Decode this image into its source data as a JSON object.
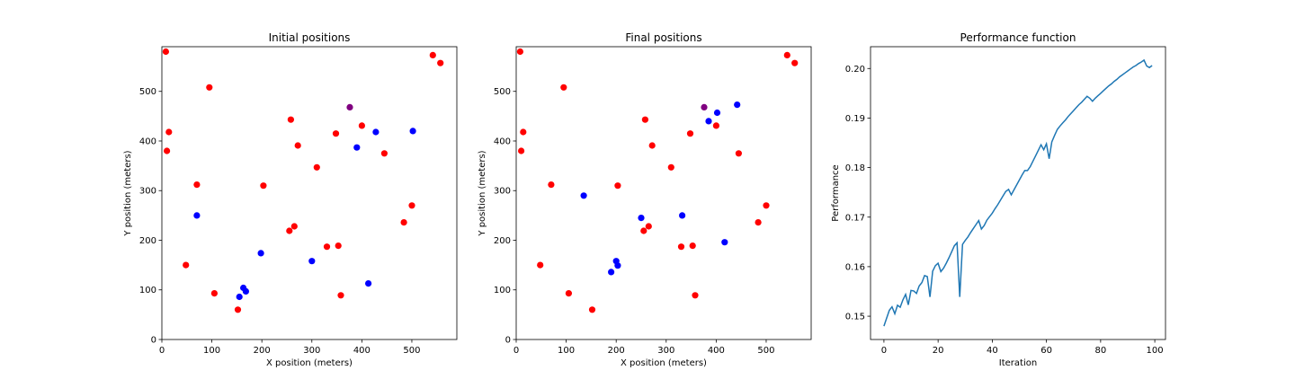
{
  "chart_data": [
    {
      "type": "scatter",
      "title": "Initial positions",
      "xlabel": "X position (meters)",
      "ylabel": "Y position (meters)",
      "xlim": [
        0,
        590
      ],
      "ylim": [
        0,
        590
      ],
      "xticks": [
        0,
        100,
        200,
        300,
        400,
        500
      ],
      "yticks": [
        0,
        100,
        200,
        300,
        400,
        500
      ],
      "grid": false,
      "series": [
        {
          "color": "#ff0000",
          "points": [
            [
              8,
              580
            ],
            [
              14,
              418
            ],
            [
              10,
              380
            ],
            [
              95,
              508
            ],
            [
              70,
              312
            ],
            [
              48,
              150
            ],
            [
              105,
              93
            ],
            [
              152,
              60
            ],
            [
              203,
              310
            ],
            [
              258,
              443
            ],
            [
              272,
              391
            ],
            [
              310,
              347
            ],
            [
              348,
              415
            ],
            [
              400,
              431
            ],
            [
              445,
              375
            ],
            [
              265,
              228
            ],
            [
              255,
              219
            ],
            [
              330,
              187
            ],
            [
              353,
              189
            ],
            [
              358,
              89
            ],
            [
              484,
              236
            ],
            [
              500,
              270
            ],
            [
              542,
              573
            ],
            [
              557,
              557
            ]
          ]
        },
        {
          "color": "#0000ff",
          "points": [
            [
              70,
              250
            ],
            [
              155,
              86
            ],
            [
              163,
              104
            ],
            [
              168,
              97
            ],
            [
              198,
              174
            ],
            [
              300,
              158
            ],
            [
              390,
              387
            ],
            [
              428,
              418
            ],
            [
              502,
              420
            ],
            [
              413,
              113
            ]
          ]
        },
        {
          "color": "#800080",
          "points": [
            [
              376,
              468
            ]
          ]
        }
      ]
    },
    {
      "type": "scatter",
      "title": "Final positions",
      "xlabel": "X position (meters)",
      "ylabel": "Y position (meters)",
      "xlim": [
        0,
        590
      ],
      "ylim": [
        0,
        590
      ],
      "xticks": [
        0,
        100,
        200,
        300,
        400,
        500
      ],
      "yticks": [
        0,
        100,
        200,
        300,
        400,
        500
      ],
      "grid": false,
      "series": [
        {
          "color": "#ff0000",
          "points": [
            [
              8,
              580
            ],
            [
              14,
              418
            ],
            [
              10,
              380
            ],
            [
              95,
              508
            ],
            [
              70,
              312
            ],
            [
              48,
              150
            ],
            [
              105,
              93
            ],
            [
              152,
              60
            ],
            [
              203,
              310
            ],
            [
              258,
              443
            ],
            [
              272,
              391
            ],
            [
              310,
              347
            ],
            [
              348,
              415
            ],
            [
              400,
              431
            ],
            [
              445,
              375
            ],
            [
              265,
              228
            ],
            [
              255,
              219
            ],
            [
              330,
              187
            ],
            [
              353,
              189
            ],
            [
              358,
              89
            ],
            [
              484,
              236
            ],
            [
              500,
              270
            ],
            [
              542,
              573
            ],
            [
              557,
              557
            ]
          ]
        },
        {
          "color": "#0000ff",
          "points": [
            [
              135,
              290
            ],
            [
              190,
              136
            ],
            [
              200,
              158
            ],
            [
              203,
              149
            ],
            [
              250,
              245
            ],
            [
              332,
              250
            ],
            [
              385,
              440
            ],
            [
              402,
              457
            ],
            [
              442,
              473
            ],
            [
              417,
              196
            ]
          ]
        },
        {
          "color": "#800080",
          "points": [
            [
              376,
              468
            ]
          ]
        }
      ]
    },
    {
      "type": "line",
      "title": "Performance function",
      "xlabel": "Iteration",
      "ylabel": "Performance",
      "xlim": [
        -4.95,
        103.95
      ],
      "ylim": [
        0.1453,
        0.2044
      ],
      "xticks": [
        0,
        20,
        40,
        60,
        80,
        100
      ],
      "yticks": [
        "0.15",
        "0.16",
        "0.17",
        "0.18",
        "0.19",
        "0.20"
      ],
      "grid": false,
      "series": [
        {
          "color": "#1f77b4",
          "x": [
            0,
            1,
            2,
            3,
            4,
            5,
            6,
            7,
            8,
            9,
            10,
            11,
            12,
            13,
            14,
            15,
            16,
            17,
            18,
            19,
            20,
            21,
            22,
            23,
            24,
            25,
            26,
            27,
            28,
            29,
            30,
            31,
            32,
            33,
            34,
            35,
            36,
            37,
            38,
            39,
            40,
            41,
            42,
            43,
            44,
            45,
            46,
            47,
            48,
            49,
            50,
            51,
            52,
            53,
            54,
            55,
            56,
            57,
            58,
            59,
            60,
            61,
            62,
            63,
            64,
            65,
            66,
            67,
            68,
            69,
            70,
            71,
            72,
            73,
            74,
            75,
            76,
            77,
            78,
            79,
            80,
            81,
            82,
            83,
            84,
            85,
            86,
            87,
            88,
            89,
            90,
            91,
            92,
            93,
            94,
            95,
            96,
            97,
            98,
            99
          ],
          "values": [
            0.148,
            0.1496,
            0.1512,
            0.1519,
            0.1505,
            0.1522,
            0.1518,
            0.1533,
            0.1544,
            0.1523,
            0.1552,
            0.1551,
            0.1546,
            0.1561,
            0.1568,
            0.1582,
            0.158,
            0.1539,
            0.1591,
            0.1602,
            0.1607,
            0.159,
            0.1597,
            0.1607,
            0.1618,
            0.163,
            0.1642,
            0.1648,
            0.1539,
            0.1645,
            0.1653,
            0.166,
            0.1669,
            0.1677,
            0.1685,
            0.1693,
            0.1676,
            0.1683,
            0.1694,
            0.1701,
            0.1708,
            0.1717,
            0.1725,
            0.1734,
            0.1743,
            0.1752,
            0.1756,
            0.1745,
            0.1755,
            0.1765,
            0.1775,
            0.1785,
            0.1794,
            0.1794,
            0.1802,
            0.1813,
            0.1824,
            0.1835,
            0.1846,
            0.1836,
            0.1848,
            0.1818,
            0.1852,
            0.1865,
            0.1877,
            0.1884,
            0.189,
            0.1896,
            0.1903,
            0.1909,
            0.1915,
            0.1921,
            0.1927,
            0.1932,
            0.1938,
            0.1944,
            0.194,
            0.1934,
            0.194,
            0.1945,
            0.195,
            0.1955,
            0.196,
            0.1965,
            0.1969,
            0.1974,
            0.1978,
            0.1983,
            0.1987,
            0.1991,
            0.1995,
            0.1999,
            0.2003,
            0.2006,
            0.201,
            0.2013,
            0.2017,
            0.2005,
            0.2002,
            0.2006
          ]
        }
      ]
    }
  ]
}
